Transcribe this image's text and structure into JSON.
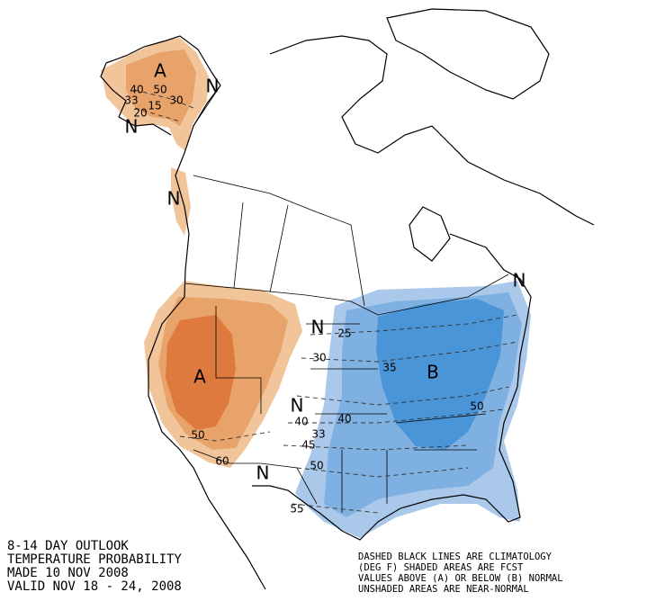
{
  "title_block": {
    "lines": [
      "8-14 DAY OUTLOOK",
      "TEMPERATURE PROBABILITY",
      "MADE  10 NOV 2008",
      "VALID  NOV 18 - 24, 2008"
    ]
  },
  "legend_block": {
    "lines": [
      "DASHED BLACK LINES ARE CLIMATOLOGY",
      "(DEG F) SHADED AREAS ARE FCST",
      "VALUES ABOVE (A) OR BELOW (B) NORMAL",
      "UNSHADED AREAS ARE NEAR-NORMAL"
    ]
  },
  "map": {
    "category_labels": [
      "A",
      "N",
      "N",
      "N",
      "A",
      "N",
      "N",
      "N",
      "B",
      "N"
    ],
    "contour_labels": [
      "40",
      "33",
      "50",
      "30",
      "20",
      "15",
      "50",
      "60",
      "25",
      "30",
      "35",
      "40",
      "40",
      "33",
      "45",
      "50",
      "50",
      "55"
    ]
  }
}
